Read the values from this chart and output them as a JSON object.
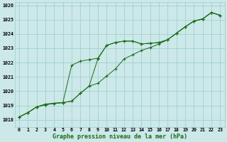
{
  "title": "Graphe pression niveau de la mer (hPa)",
  "background_color": "#cce8e8",
  "grid_color": "#99cccc",
  "line_color": "#1a6b1a",
  "x_labels": [
    "0",
    "1",
    "2",
    "3",
    "4",
    "5",
    "6",
    "7",
    "8",
    "9",
    "10",
    "11",
    "12",
    "13",
    "14",
    "15",
    "16",
    "17",
    "18",
    "19",
    "20",
    "21",
    "22",
    "23"
  ],
  "ylim": [
    1017.5,
    1026.2
  ],
  "yticks": [
    1018,
    1019,
    1020,
    1021,
    1022,
    1023,
    1024,
    1025,
    1026
  ],
  "series1": [
    1018.2,
    1018.5,
    1018.9,
    1019.1,
    1019.15,
    1019.2,
    1021.8,
    1022.1,
    1022.2,
    1022.3,
    1023.2,
    1023.4,
    1023.5,
    1023.5,
    1023.3,
    1023.35,
    1023.4,
    1023.6,
    1024.05,
    1024.5,
    1024.9,
    1025.05,
    1025.5,
    1025.3
  ],
  "series2": [
    1018.2,
    1018.5,
    1018.9,
    1019.05,
    1019.15,
    1019.2,
    1019.3,
    1019.85,
    1020.35,
    1020.55,
    1021.05,
    1021.55,
    1022.25,
    1022.55,
    1022.85,
    1023.05,
    1023.3,
    1023.6,
    1024.05,
    1024.5,
    1024.9,
    1025.05,
    1025.5,
    1025.3
  ],
  "series3": [
    1018.2,
    1018.5,
    1018.9,
    1019.05,
    1019.15,
    1019.2,
    1019.3,
    1019.85,
    1020.35,
    1022.25,
    1023.2,
    1023.4,
    1023.5,
    1023.5,
    1023.3,
    1023.35,
    1023.4,
    1023.6,
    1024.05,
    1024.5,
    1024.9,
    1025.05,
    1025.5,
    1025.3
  ],
  "title_fontsize": 6,
  "tick_fontsize": 4.8
}
